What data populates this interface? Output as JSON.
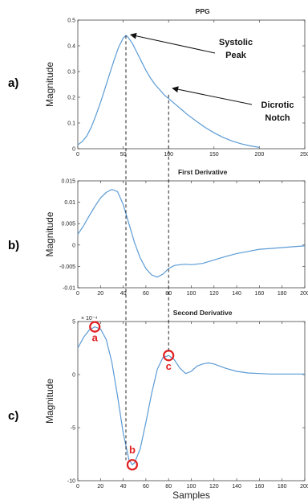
{
  "chart_data": [
    {
      "type": "line",
      "panel_label": "a)",
      "title": "PPG",
      "ylabel": "Magnitude",
      "xlabel": "",
      "xlim": [
        0,
        250
      ],
      "ylim": [
        0,
        0.5
      ],
      "xticks": [
        "0",
        "50",
        "100",
        "150",
        "200",
        "250"
      ],
      "yticks": [
        "0",
        "0.1",
        "0.2",
        "0.3",
        "0.4",
        "0.5"
      ],
      "color": "#5b9bd5",
      "series": [
        {
          "x": [
            0,
            5,
            10,
            15,
            20,
            25,
            30,
            35,
            40,
            45,
            50,
            53,
            55,
            60,
            65,
            70,
            75,
            80,
            85,
            90,
            95,
            100,
            105,
            110,
            115,
            120,
            130,
            140,
            150,
            160,
            170,
            180,
            190,
            200
          ],
          "y": [
            0.015,
            0.028,
            0.05,
            0.085,
            0.13,
            0.18,
            0.235,
            0.29,
            0.345,
            0.395,
            0.43,
            0.44,
            0.435,
            0.41,
            0.375,
            0.34,
            0.305,
            0.275,
            0.25,
            0.23,
            0.21,
            0.195,
            0.18,
            0.165,
            0.15,
            0.135,
            0.108,
            0.083,
            0.062,
            0.044,
            0.03,
            0.019,
            0.011,
            0.005
          ]
        }
      ],
      "annotations": [
        {
          "label": "Systolic\nPeak",
          "x": 53,
          "y": 0.44
        },
        {
          "label": "Dicrotic\nNotch",
          "x": 100,
          "y": 0.21
        }
      ]
    },
    {
      "type": "line",
      "panel_label": "b)",
      "title": "First Derivative",
      "ylabel": "Magnitude",
      "xlabel": "",
      "xlim": [
        0,
        200
      ],
      "ylim": [
        -0.01,
        0.015
      ],
      "xticks": [
        "0",
        "20",
        "40",
        "60",
        "80",
        "100",
        "120",
        "140",
        "160",
        "180",
        "200"
      ],
      "yticks": [
        "-0.01",
        "-0.005",
        "0",
        "0.005",
        "0.01",
        "0.015"
      ],
      "color": "#5b9bd5",
      "series": [
        {
          "x": [
            0,
            5,
            10,
            15,
            20,
            25,
            30,
            35,
            40,
            45,
            50,
            55,
            60,
            65,
            70,
            75,
            80,
            85,
            90,
            95,
            100,
            110,
            120,
            130,
            140,
            150,
            160,
            170,
            180,
            190,
            200
          ],
          "y": [
            0.0025,
            0.0045,
            0.0068,
            0.009,
            0.011,
            0.0123,
            0.013,
            0.0125,
            0.0095,
            0.005,
            0.0005,
            -0.003,
            -0.0055,
            -0.007,
            -0.0075,
            -0.0068,
            -0.0055,
            -0.0048,
            -0.0046,
            -0.0045,
            -0.0046,
            -0.0043,
            -0.0035,
            -0.0027,
            -0.002,
            -0.0015,
            -0.001,
            -0.0008,
            -0.0006,
            -0.0004,
            -0.0002
          ]
        }
      ]
    },
    {
      "type": "line",
      "panel_label": "c)",
      "title": "Second Derivative",
      "ylabel": "Magnitude",
      "xlabel": "Samples",
      "y_exponent": "× 10⁻⁴",
      "xlim": [
        0,
        200
      ],
      "ylim": [
        -10,
        5
      ],
      "xticks": [
        "0",
        "20",
        "40",
        "60",
        "80",
        "100",
        "120",
        "140",
        "160",
        "180",
        "200"
      ],
      "yticks": [
        "-10",
        "-5",
        "0",
        "5"
      ],
      "color": "#5b9bd5",
      "series": [
        {
          "x": [
            0,
            5,
            10,
            15,
            20,
            25,
            30,
            35,
            40,
            45,
            48,
            50,
            55,
            60,
            65,
            70,
            75,
            80,
            85,
            90,
            95,
            100,
            105,
            110,
            115,
            120,
            125,
            130,
            140,
            150,
            160,
            170,
            180,
            190,
            200
          ],
          "y": [
            2.5,
            3.5,
            4.2,
            4.5,
            4.3,
            3.3,
            1.2,
            -2,
            -5.5,
            -8,
            -8.5,
            -8.3,
            -7,
            -4.5,
            -1.8,
            0.5,
            1.6,
            1.8,
            1.4,
            0.6,
            0.1,
            0.3,
            0.8,
            1.0,
            1.1,
            1.0,
            0.8,
            0.6,
            0.3,
            0.15,
            0.1,
            0.05,
            0.05,
            0.05,
            0.05
          ]
        }
      ],
      "points": [
        {
          "label": "a",
          "x": 15,
          "y": 4.5
        },
        {
          "label": "b",
          "x": 48,
          "y": -8.5
        },
        {
          "label": "c",
          "x": 80,
          "y": 1.8
        }
      ],
      "point_color": "#e02020"
    }
  ]
}
